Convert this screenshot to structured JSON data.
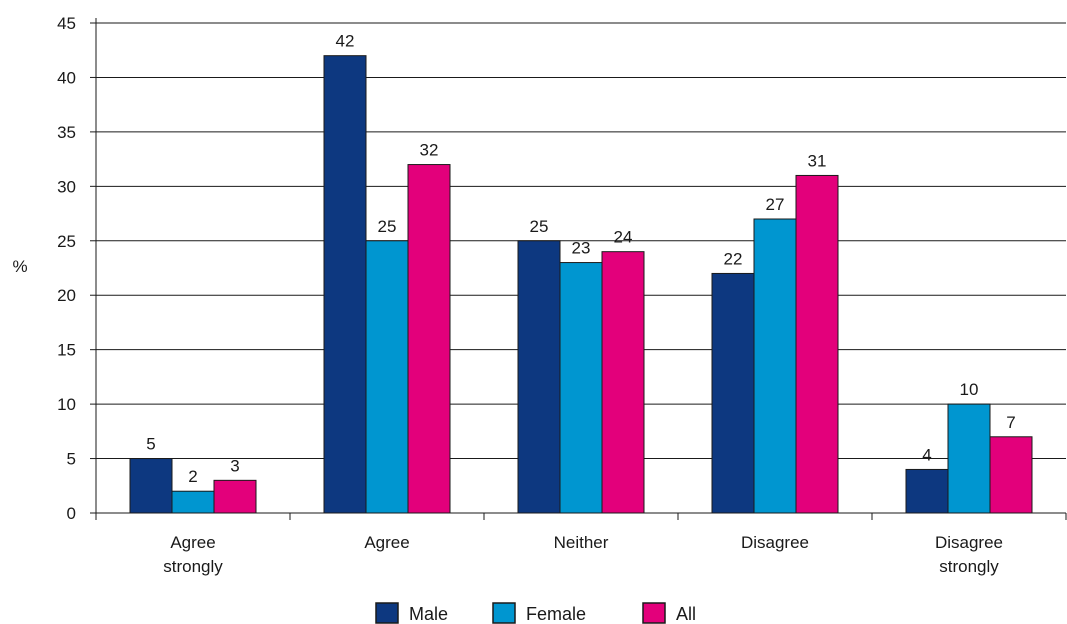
{
  "chart_data": {
    "type": "bar",
    "title": "",
    "xlabel": "",
    "ylabel": "%",
    "ylim": [
      0,
      45
    ],
    "yticks": [
      0,
      5,
      10,
      15,
      20,
      25,
      30,
      35,
      40,
      45
    ],
    "grid": true,
    "legend_position": "bottom",
    "categories": [
      [
        "Agree",
        "strongly"
      ],
      [
        "Agree"
      ],
      [
        "Neither"
      ],
      [
        "Disagree"
      ],
      [
        "Disagree",
        "strongly"
      ]
    ],
    "series": [
      {
        "name": "Male",
        "color": "#0d3880",
        "values": [
          5,
          42,
          25,
          22,
          4
        ]
      },
      {
        "name": "Female",
        "color": "#0096d0",
        "values": [
          2,
          25,
          23,
          27,
          10
        ]
      },
      {
        "name": "All",
        "color": "#e3007b",
        "values": [
          3,
          32,
          24,
          31,
          7
        ]
      }
    ]
  }
}
